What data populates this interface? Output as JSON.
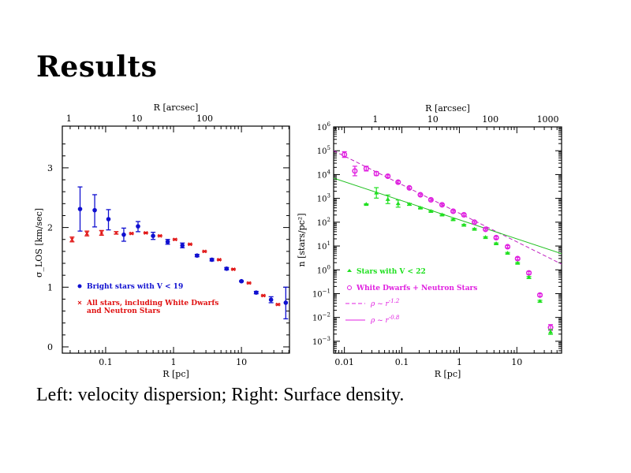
{
  "slide": {
    "title": "Results",
    "caption": "Left: velocity dispersion; Right: Surface density."
  },
  "chart_data": [
    {
      "type": "scatter",
      "name": "velocity-dispersion",
      "title": "",
      "xlabel": "R [pc]",
      "x2label": "R [arcsec]",
      "ylabel": "σ_LOS [km/sec]",
      "xscale": "log",
      "xlim": [
        0.023,
        51
      ],
      "ylim": [
        0,
        3.7
      ],
      "xticks": [
        {
          "v": 0.1,
          "label": "0.1"
        },
        {
          "v": 1,
          "label": "1"
        },
        {
          "v": 10,
          "label": "10"
        }
      ],
      "x2ticks_pc": [
        {
          "v": 0.0288,
          "label": "1"
        },
        {
          "v": 0.288,
          "label": "10"
        },
        {
          "v": 2.88,
          "label": "100"
        }
      ],
      "yticks": [
        {
          "v": 0,
          "label": "0"
        },
        {
          "v": 1,
          "label": "1"
        },
        {
          "v": 2,
          "label": "2"
        },
        {
          "v": 3,
          "label": "3"
        }
      ],
      "legend_position": "bottom-left",
      "series": [
        {
          "name": "Bright stars with V < 19",
          "color": "#1010d0",
          "marker": "dot",
          "x": [
            0.042,
            0.069,
            0.11,
            0.185,
            0.3,
            0.5,
            0.82,
            1.35,
            2.22,
            3.67,
            6.05,
            10.0,
            16.5,
            27.3,
            45
          ],
          "y": [
            2.31,
            2.29,
            2.14,
            1.88,
            2.02,
            1.86,
            1.76,
            1.7,
            1.53,
            1.46,
            1.31,
            1.1,
            0.91,
            0.79,
            0.74
          ],
          "err_hi": [
            2.68,
            2.55,
            2.3,
            1.99,
            2.1,
            1.92,
            1.8,
            1.74,
            1.55,
            1.48,
            1.33,
            1.11,
            0.93,
            0.84,
            1.0
          ],
          "err_lo": [
            1.94,
            2.01,
            1.96,
            1.77,
            1.93,
            1.8,
            1.72,
            1.66,
            1.51,
            1.44,
            1.29,
            1.09,
            0.89,
            0.74,
            0.47
          ]
        },
        {
          "name": "All stars, including White Dwarfs and Neutron Stars",
          "legend_lines": [
            "All stars, including White Dwarfs",
            "and Neutron Stars"
          ],
          "color": "#e01010",
          "marker": "x",
          "x": [
            0.032,
            0.053,
            0.087,
            0.143,
            0.24,
            0.39,
            0.63,
            1.05,
            1.75,
            2.86,
            4.7,
            7.6,
            12.9,
            21,
            34.5
          ],
          "y": [
            1.8,
            1.9,
            1.91,
            1.91,
            1.9,
            1.91,
            1.86,
            1.8,
            1.72,
            1.6,
            1.46,
            1.3,
            1.07,
            0.86,
            0.71
          ],
          "err_hi": [
            1.84,
            1.94,
            1.95,
            1.93,
            1.91,
            1.92,
            1.87,
            1.81,
            1.73,
            1.61,
            1.47,
            1.31,
            1.08,
            0.87,
            0.72
          ],
          "err_lo": [
            1.76,
            1.86,
            1.87,
            1.89,
            1.89,
            1.9,
            1.85,
            1.79,
            1.71,
            1.59,
            1.45,
            1.29,
            1.06,
            0.85,
            0.7
          ]
        }
      ]
    },
    {
      "type": "scatter",
      "name": "surface-density",
      "title": "",
      "xlabel": "R [pc]",
      "x2label": "R [arcsec]",
      "ylabel": "n [stars/pc²]",
      "xscale": "log",
      "yscale": "log",
      "xlim": [
        0.0065,
        60
      ],
      "ylim_log10": [
        -3.5,
        6
      ],
      "xticks": [
        {
          "v": 0.01,
          "label": "0.01"
        },
        {
          "v": 0.1,
          "label": "0.1"
        },
        {
          "v": 1,
          "label": "1"
        },
        {
          "v": 10,
          "label": "10"
        }
      ],
      "x2ticks_pc": [
        {
          "v": 0.0346,
          "label": "1"
        },
        {
          "v": 0.346,
          "label": "10"
        },
        {
          "v": 3.46,
          "label": "100"
        },
        {
          "v": 34.6,
          "label": "1000"
        }
      ],
      "yticks_log10": [
        6,
        5,
        4,
        3,
        2,
        1,
        0,
        -1,
        -2,
        -3
      ],
      "legend_position": "bottom-left",
      "series": [
        {
          "name": "White Dwarfs + Neutron Stars",
          "color": "#e020e0",
          "marker": "circle",
          "x": [
            0.01,
            0.0152,
            0.024,
            0.036,
            0.057,
            0.086,
            0.135,
            0.21,
            0.32,
            0.5,
            0.78,
            1.2,
            1.83,
            2.85,
            4.37,
            6.9,
            10.3,
            16.2,
            25.2,
            38.6
          ],
          "log10_y": [
            4.84,
            4.15,
            4.25,
            4.04,
            3.93,
            3.68,
            3.44,
            3.15,
            2.94,
            2.73,
            2.46,
            2.31,
            2.0,
            1.7,
            1.35,
            0.97,
            0.47,
            -0.13,
            -1.06,
            -2.42
          ],
          "log10_err": [
            0.12,
            0.2,
            0.1,
            0.08,
            0.05,
            0.05,
            0.05,
            0.04,
            0.04,
            0.04,
            0.04,
            0.04,
            0.04,
            0.04,
            0.05,
            0.05,
            0.05,
            0.06,
            0.06,
            0.12
          ]
        },
        {
          "name": "Stars with V < 22",
          "color": "#20e020",
          "marker": "triangle",
          "x": [
            0.024,
            0.036,
            0.057,
            0.086,
            0.135,
            0.21,
            0.32,
            0.5,
            0.78,
            1.2,
            1.83,
            2.85,
            4.37,
            6.9,
            10.3,
            16.2,
            25.2,
            38.6
          ],
          "log10_y": [
            2.75,
            3.23,
            2.96,
            2.78,
            2.75,
            2.6,
            2.46,
            2.31,
            2.11,
            1.88,
            1.71,
            1.36,
            1.1,
            0.7,
            0.28,
            -0.32,
            -1.32,
            -2.61
          ],
          "log10_err": [
            0.02,
            0.22,
            0.18,
            0.15,
            0.04,
            0.03,
            0.03,
            0.03,
            0.03,
            0.03,
            0.03,
            0.03,
            0.03,
            0.03,
            0.03,
            0.04,
            0.04,
            0.1
          ]
        }
      ],
      "fits": [
        {
          "name": "ρ ~ r^-1.2",
          "label_prefix": "ρ ~ r",
          "exponent": "-1.2",
          "style": "dashed",
          "color": "#c020c0",
          "slope": -1.2,
          "log10_y_at_x0": 5.0,
          "x0": 0.0065
        },
        {
          "name": "ρ ~ r^-0.8",
          "label_prefix": "ρ ~ r",
          "exponent": "-0.8",
          "style": "solid",
          "color": "#20c020",
          "slope": -0.8,
          "log10_y_at_x0": 3.85,
          "x0": 0.0065
        }
      ]
    }
  ]
}
